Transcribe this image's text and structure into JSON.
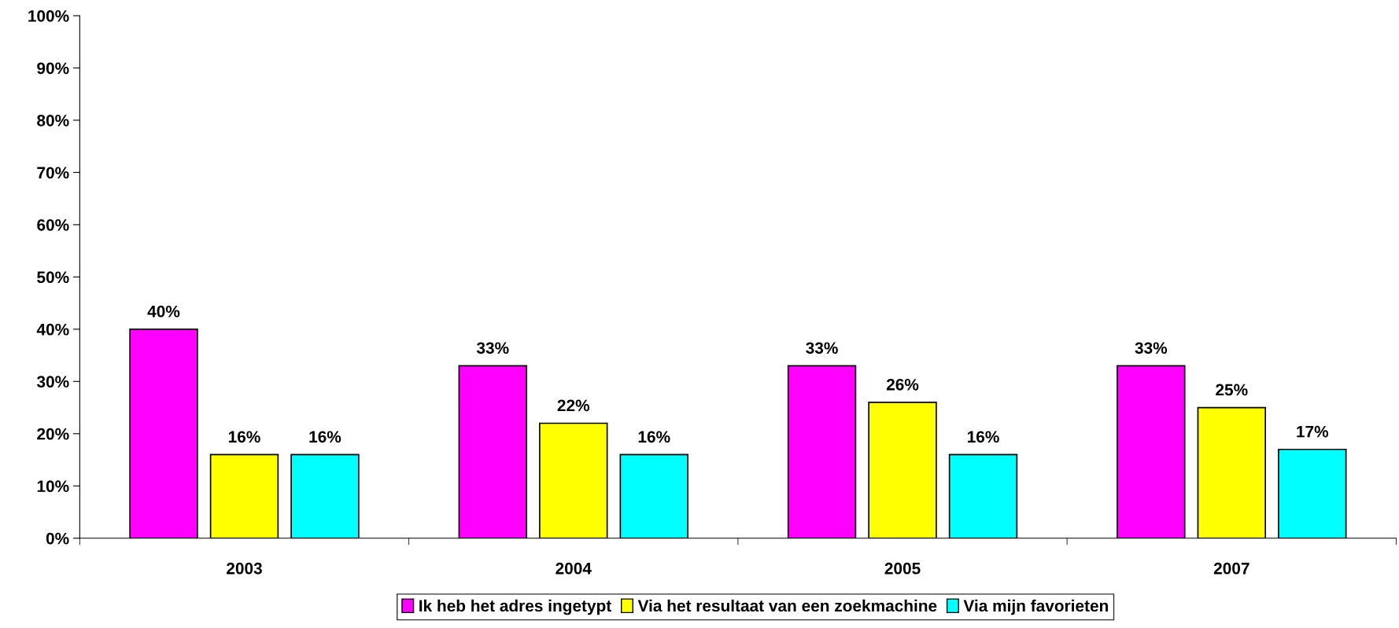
{
  "chart_data": {
    "type": "bar",
    "categories": [
      "2003",
      "2004",
      "2005",
      "2007"
    ],
    "series": [
      {
        "name": "Ik heb het adres ingetypt",
        "color": "#ff00ff",
        "values": [
          40,
          33,
          33,
          33
        ],
        "value_labels": [
          "40%",
          "33%",
          "33%",
          "33%"
        ]
      },
      {
        "name": "Via het resultaat van een zoekmachine",
        "color": "#ffff00",
        "values": [
          16,
          22,
          26,
          25
        ],
        "value_labels": [
          "16%",
          "22%",
          "26%",
          "25%"
        ]
      },
      {
        "name": "Via mijn favorieten",
        "color": "#00ffff",
        "values": [
          16,
          16,
          16,
          17
        ],
        "value_labels": [
          "16%",
          "16%",
          "16%",
          "17%"
        ]
      }
    ],
    "ylim": [
      0,
      100
    ],
    "yticks": [
      {
        "value": 0,
        "label": "0%"
      },
      {
        "value": 10,
        "label": "10%"
      },
      {
        "value": 20,
        "label": "20%"
      },
      {
        "value": 30,
        "label": "30%"
      },
      {
        "value": 40,
        "label": "40%"
      },
      {
        "value": 50,
        "label": "50%"
      },
      {
        "value": 60,
        "label": "60%"
      },
      {
        "value": 70,
        "label": "70%"
      },
      {
        "value": 80,
        "label": "80%"
      },
      {
        "value": 90,
        "label": "90%"
      },
      {
        "value": 100,
        "label": "100%"
      }
    ],
    "grid": false,
    "legend": "bottom"
  }
}
